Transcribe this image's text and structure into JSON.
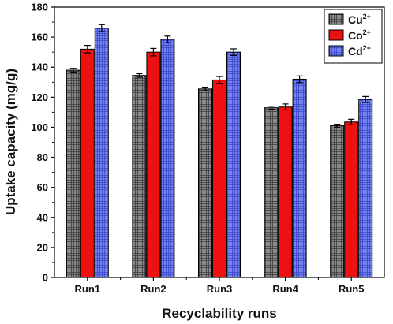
{
  "chart_data": {
    "type": "bar",
    "categories": [
      "Run1",
      "Run2",
      "Run3",
      "Run4",
      "Run5"
    ],
    "series": [
      {
        "name": "Cu",
        "sup": "2+",
        "color": "#808080",
        "pattern": "grid",
        "values": [
          138,
          134.5,
          125.5,
          113,
          101
        ],
        "errors": [
          1.2,
          1.2,
          1.2,
          1.0,
          1.0
        ]
      },
      {
        "name": "Co",
        "sup": "2+",
        "color": "#ee1111",
        "pattern": "solid",
        "values": [
          152,
          150,
          131.5,
          113.5,
          103.5
        ],
        "errors": [
          2.5,
          2.5,
          2.3,
          2.0,
          1.8
        ]
      },
      {
        "name": "Cd",
        "sup": "2+",
        "color": "#6b77ee",
        "pattern": "grid",
        "values": [
          166,
          158.5,
          150,
          132,
          118.5
        ],
        "errors": [
          2.3,
          2.2,
          2.2,
          2.2,
          2.0
        ]
      }
    ],
    "title": "",
    "xlabel": "Recyclability runs",
    "ylabel": "Uptake capacity (mg/g)",
    "ylim": [
      0,
      180
    ],
    "yticks": [
      "0",
      "20",
      "40",
      "60",
      "80",
      "100",
      "120",
      "140",
      "160",
      "180"
    ],
    "grid": false,
    "legend_position": "top-right"
  }
}
